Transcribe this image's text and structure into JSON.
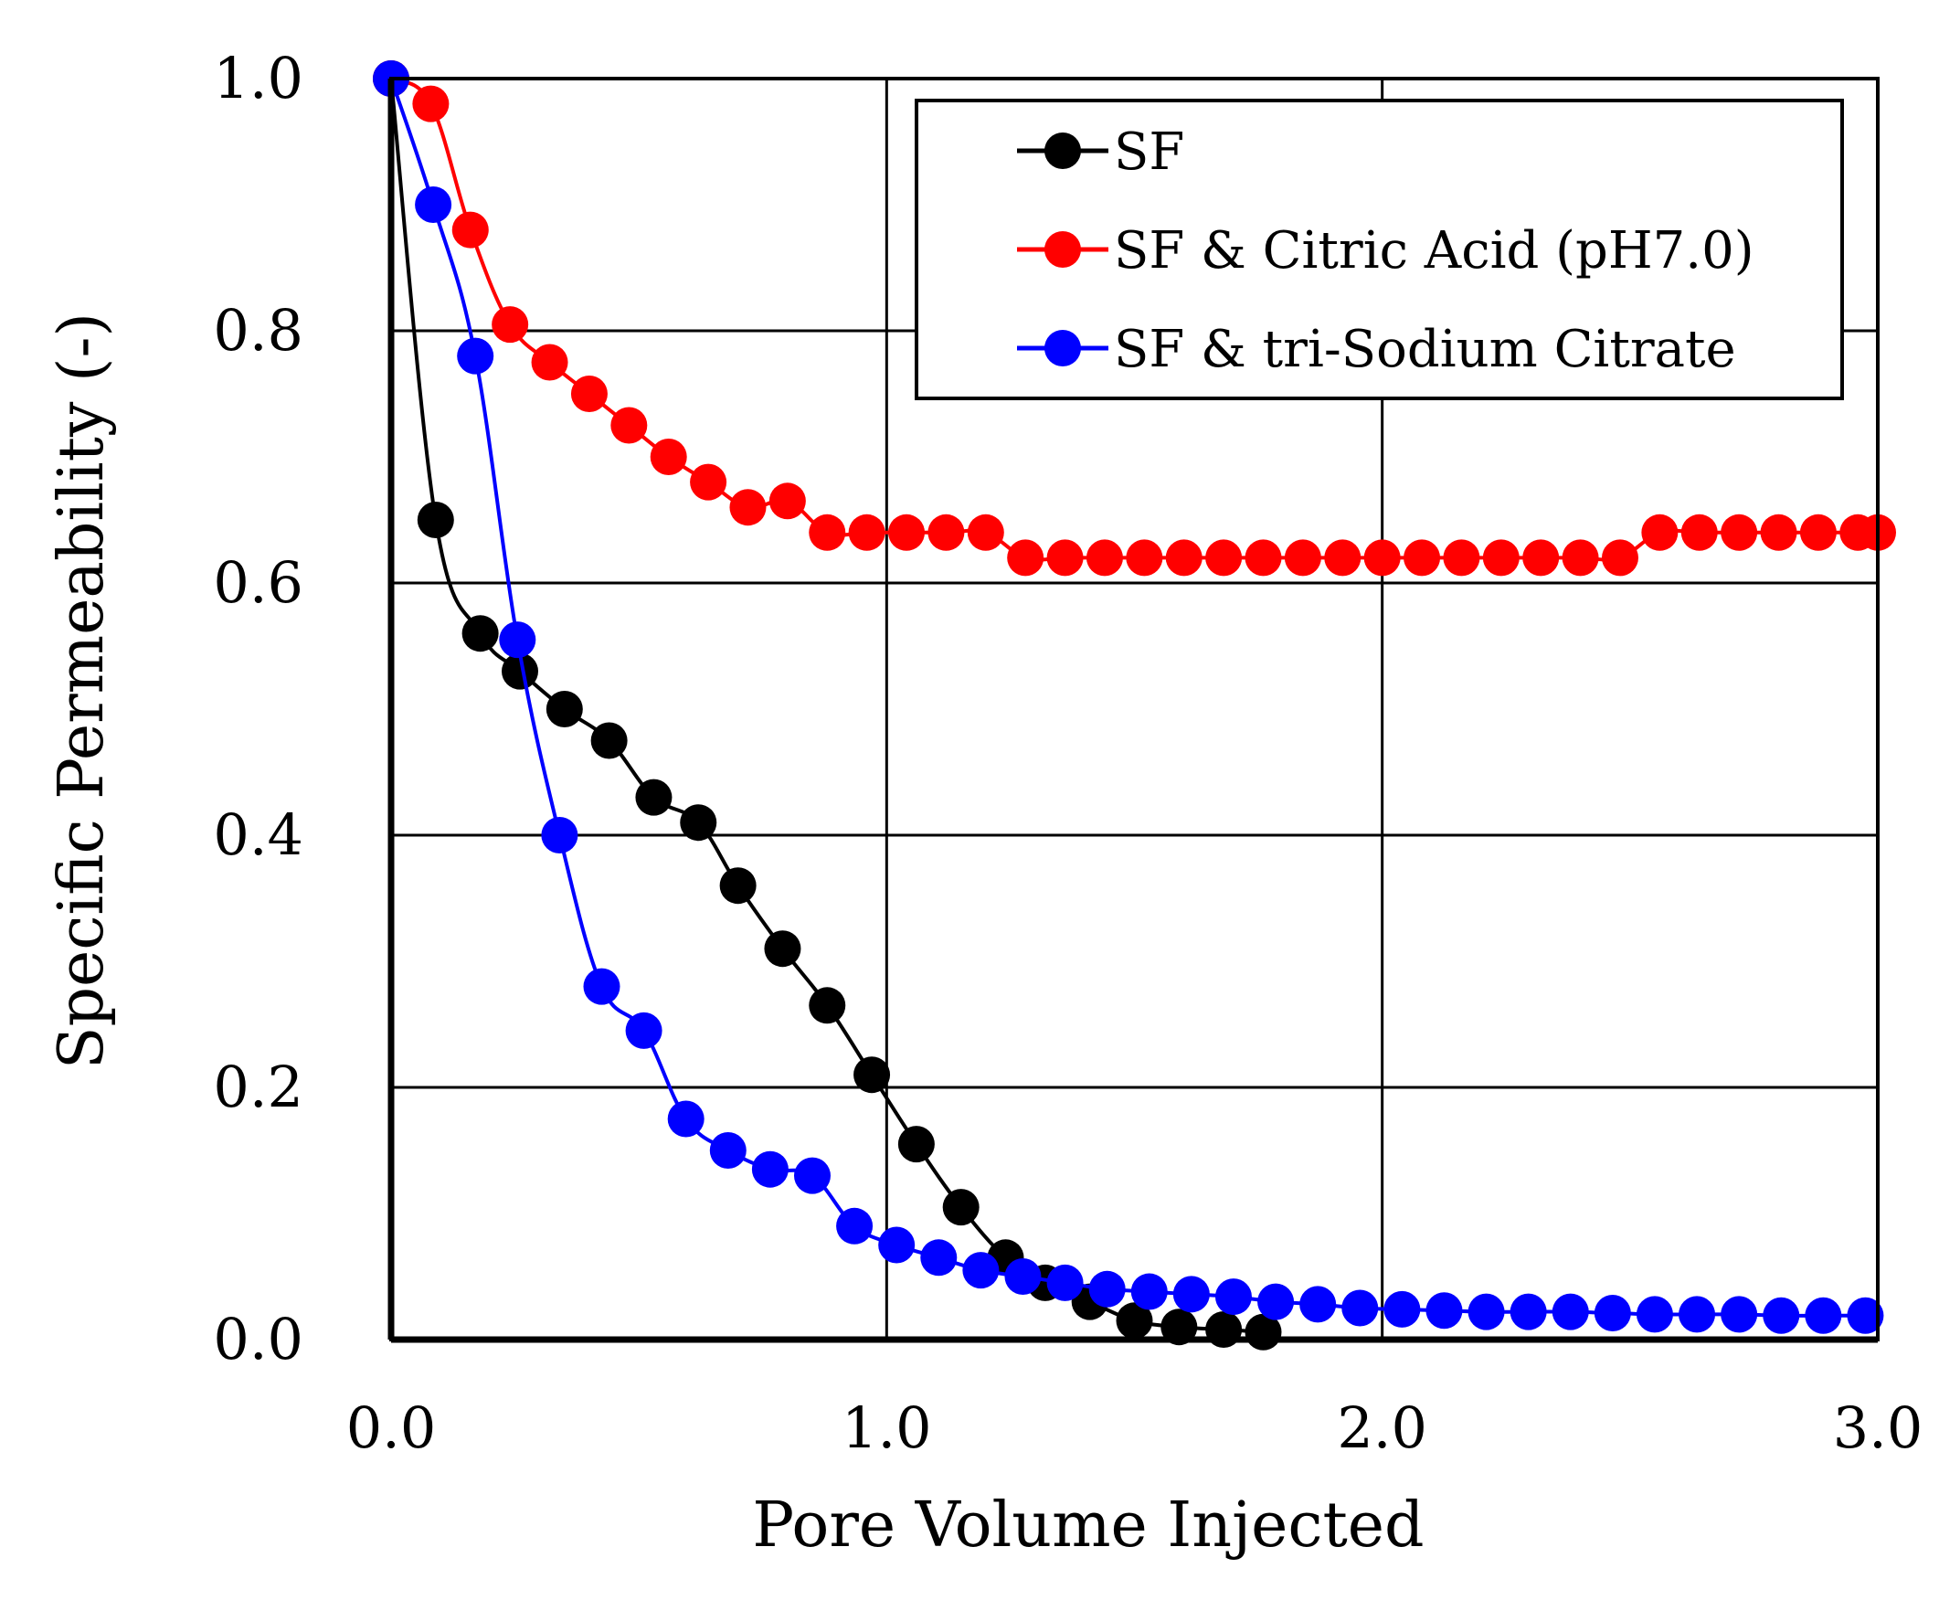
{
  "chart_data": {
    "type": "line",
    "title": "",
    "xlabel": "Pore Volume Injected",
    "ylabel": "Specific Permeability (-)",
    "xlim": [
      0.0,
      3.0
    ],
    "ylim": [
      0.0,
      1.0
    ],
    "x_ticks": [
      0.0,
      1.0,
      2.0,
      3.0
    ],
    "y_ticks": [
      0.0,
      0.2,
      0.4,
      0.6,
      0.8,
      1.0
    ],
    "x_tick_labels": [
      "0.0",
      "1.0",
      "2.0",
      "3.0"
    ],
    "y_tick_labels": [
      "0.0",
      "0.2",
      "0.4",
      "0.6",
      "0.8",
      "1.0"
    ],
    "grid": true,
    "legend_position": "top-right",
    "series": [
      {
        "name": "SF",
        "color": "#000000",
        "x": [
          0.0,
          0.09,
          0.18,
          0.26,
          0.35,
          0.44,
          0.53,
          0.62,
          0.7,
          0.79,
          0.88,
          0.97,
          1.06,
          1.15,
          1.24,
          1.32,
          1.41,
          1.5,
          1.59,
          1.68,
          1.76
        ],
        "y": [
          1.0,
          0.65,
          0.56,
          0.53,
          0.5,
          0.475,
          0.43,
          0.41,
          0.36,
          0.31,
          0.265,
          0.21,
          0.155,
          0.105,
          0.065,
          0.045,
          0.03,
          0.015,
          0.01,
          0.008,
          0.006
        ]
      },
      {
        "name": "SF & Citric Acid (pH7.0)",
        "color": "#ff0000",
        "x": [
          0.0,
          0.08,
          0.16,
          0.24,
          0.32,
          0.4,
          0.48,
          0.56,
          0.64,
          0.72,
          0.8,
          0.88,
          0.96,
          1.04,
          1.12,
          1.2,
          1.28,
          1.36,
          1.44,
          1.52,
          1.6,
          1.68,
          1.76,
          1.84,
          1.92,
          2.0,
          2.08,
          2.16,
          2.24,
          2.32,
          2.4,
          2.48,
          2.56,
          2.64,
          2.72,
          2.8,
          2.88,
          2.96,
          3.0
        ],
        "y": [
          1.0,
          0.98,
          0.88,
          0.805,
          0.775,
          0.75,
          0.725,
          0.7,
          0.68,
          0.66,
          0.665,
          0.64,
          0.64,
          0.64,
          0.64,
          0.64,
          0.62,
          0.62,
          0.62,
          0.62,
          0.62,
          0.62,
          0.62,
          0.62,
          0.62,
          0.62,
          0.62,
          0.62,
          0.62,
          0.62,
          0.62,
          0.62,
          0.64,
          0.64,
          0.64,
          0.64,
          0.64,
          0.64,
          0.64
        ]
      },
      {
        "name": "SF & tri-Sodium Citrate",
        "color": "#0000ff",
        "x": [
          0.0,
          0.085,
          0.17,
          0.255,
          0.34,
          0.425,
          0.51,
          0.595,
          0.68,
          0.765,
          0.85,
          0.935,
          1.02,
          1.105,
          1.19,
          1.275,
          1.36,
          1.445,
          1.53,
          1.615,
          1.7,
          1.785,
          1.87,
          1.955,
          2.04,
          2.125,
          2.21,
          2.295,
          2.38,
          2.465,
          2.55,
          2.635,
          2.72,
          2.805,
          2.89,
          2.975
        ],
        "y": [
          1.0,
          0.9,
          0.78,
          0.555,
          0.4,
          0.28,
          0.245,
          0.175,
          0.15,
          0.135,
          0.13,
          0.09,
          0.075,
          0.065,
          0.055,
          0.05,
          0.045,
          0.04,
          0.038,
          0.036,
          0.034,
          0.03,
          0.028,
          0.025,
          0.024,
          0.023,
          0.022,
          0.022,
          0.022,
          0.021,
          0.02,
          0.02,
          0.02,
          0.019,
          0.019,
          0.019
        ]
      }
    ]
  }
}
